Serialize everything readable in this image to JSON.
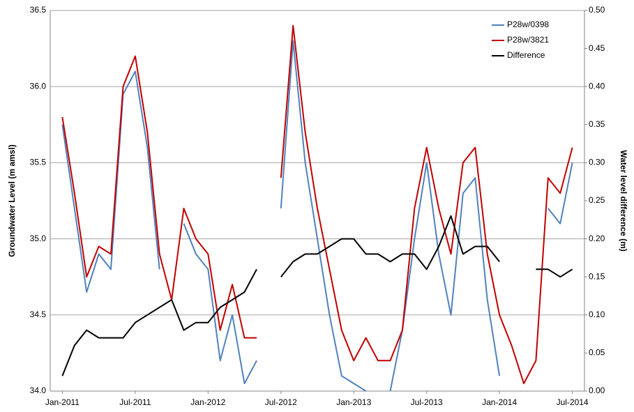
{
  "chart_data": {
    "type": "line",
    "y_label": "Groundwater Level (m amsl)",
    "y2_label": "Water level difference (m)",
    "x": [
      "2011-01",
      "2011-02",
      "2011-03",
      "2011-04",
      "2011-05",
      "2011-06",
      "2011-07",
      "2011-08",
      "2011-09",
      "2011-10",
      "2011-11",
      "2011-12",
      "2012-01",
      "2012-02",
      "2012-03",
      "2012-04",
      "2012-05",
      "2012-06",
      "2012-07",
      "2012-08",
      "2012-09",
      "2012-10",
      "2012-11",
      "2012-12",
      "2013-01",
      "2013-02",
      "2013-03",
      "2013-04",
      "2013-05",
      "2013-06",
      "2013-07",
      "2013-08",
      "2013-09",
      "2013-10",
      "2013-11",
      "2013-12",
      "2014-01",
      "2014-02",
      "2014-03",
      "2014-04",
      "2014-05",
      "2014-06",
      "2014-07"
    ],
    "series": [
      {
        "name": "P28w/0398",
        "color": "#4f81bd",
        "values": [
          35.75,
          35.2,
          34.65,
          34.9,
          34.8,
          35.95,
          36.1,
          35.6,
          34.8,
          null,
          35.1,
          34.9,
          34.8,
          34.2,
          34.5,
          34.05,
          34.2,
          null,
          35.2,
          36.3,
          35.5,
          35.0,
          34.5,
          34.1,
          34.05,
          34.0,
          null,
          34.0,
          34.4,
          35.0,
          35.5,
          34.9,
          34.5,
          35.3,
          35.4,
          34.6,
          34.1,
          null,
          null,
          null,
          35.2,
          35.1,
          35.5
        ]
      },
      {
        "name": "P28w/3821",
        "color": "#c00000",
        "values": [
          35.8,
          35.3,
          34.75,
          34.95,
          34.9,
          36.0,
          36.2,
          35.7,
          34.9,
          34.6,
          35.2,
          35.0,
          34.9,
          34.4,
          34.7,
          34.35,
          34.35,
          null,
          35.4,
          36.4,
          35.7,
          35.2,
          34.8,
          34.4,
          34.2,
          34.35,
          34.2,
          34.2,
          34.4,
          35.2,
          35.6,
          35.2,
          34.9,
          35.5,
          35.6,
          34.9,
          34.5,
          34.3,
          34.05,
          34.2,
          35.4,
          35.3,
          35.6
        ]
      },
      {
        "name": "Difference",
        "color": "#000000",
        "axis": "y2",
        "values": [
          0.02,
          0.06,
          0.08,
          0.07,
          0.07,
          0.07,
          0.09,
          0.1,
          0.11,
          0.12,
          0.08,
          0.09,
          0.09,
          0.11,
          0.12,
          0.13,
          0.16,
          null,
          0.15,
          0.17,
          0.18,
          0.18,
          0.19,
          0.2,
          0.2,
          0.18,
          0.18,
          0.17,
          0.18,
          0.18,
          0.16,
          0.19,
          0.23,
          0.18,
          0.19,
          0.19,
          0.17,
          null,
          null,
          0.16,
          0.16,
          0.15,
          0.16
        ]
      }
    ],
    "xlim": [
      "2010-12",
      "2014-08"
    ],
    "xticks": [
      {
        "value": "2011-01",
        "label": "Jan-2011"
      },
      {
        "value": "2011-07",
        "label": "Jul-2011"
      },
      {
        "value": "2012-01",
        "label": "Jan-2012"
      },
      {
        "value": "2012-07",
        "label": "Jul-2012"
      },
      {
        "value": "2013-01",
        "label": "Jan-2013"
      },
      {
        "value": "2013-07",
        "label": "Jul-2013"
      },
      {
        "value": "2014-01",
        "label": "Jan-2014"
      },
      {
        "value": "2014-07",
        "label": "Jul-2014"
      }
    ],
    "ylim": [
      34,
      36.5
    ],
    "yticks": [
      {
        "value": 34,
        "label": "34.0"
      },
      34.5,
      {
        "value": 35,
        "label": "35.0"
      },
      35.5,
      {
        "value": 36,
        "label": "36.0"
      },
      36.5
    ],
    "y2lim": [
      0,
      0.5
    ],
    "y2ticks": [
      {
        "value": 0,
        "label": "0.00"
      },
      0.05,
      {
        "value": 0.1,
        "label": "0.10"
      },
      0.15,
      {
        "value": 0.2,
        "label": "0.20"
      },
      0.25,
      {
        "value": 0.3,
        "label": "0.30"
      },
      0.35,
      {
        "value": 0.4,
        "label": "0.40"
      },
      0.45,
      {
        "value": 0.5,
        "label": "0.50"
      }
    ],
    "grid": true,
    "legend": "upper right"
  }
}
